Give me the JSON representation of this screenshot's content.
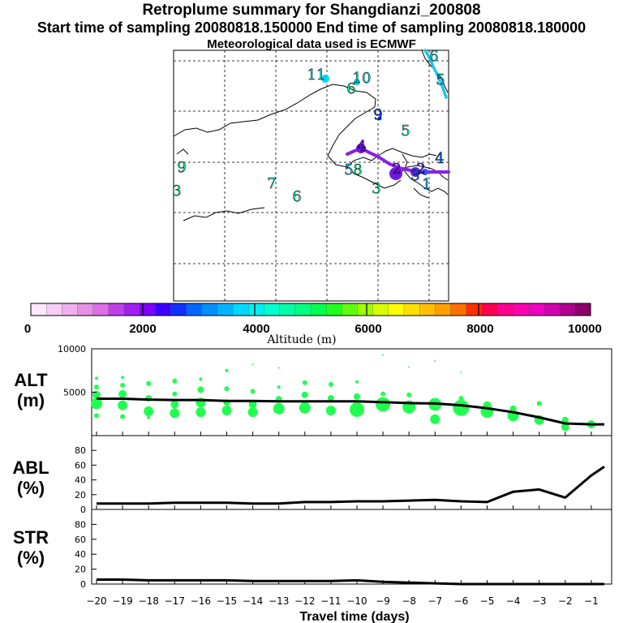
{
  "title": "Retroplume summary for Shangdianzi_200808",
  "subtitle": "Start time of sampling 20080818.150000     End time of sampling 20080818.180000",
  "met_line": "Meteorological data used is ECMWF",
  "colorbar": {
    "labels": [
      "0",
      "2000",
      "4000",
      "6000",
      "8000",
      "10000"
    ],
    "caption": "Altitude (m)",
    "colors": [
      "#fbe8fb",
      "#f5cdf5",
      "#eeb0ee",
      "#e690e6",
      "#dd6fe6",
      "#c040e8",
      "#a020f0",
      "#8000ff",
      "#3a00ff",
      "#1030ff",
      "#0068ff",
      "#0090ff",
      "#00b4ff",
      "#00d8ff",
      "#00f0f0",
      "#00ffd0",
      "#00ffa8",
      "#00ff80",
      "#00ff50",
      "#20ff20",
      "#60ff10",
      "#a0ff00",
      "#d8ff00",
      "#ffff00",
      "#ffe000",
      "#ffc000",
      "#ffa000",
      "#ff7000",
      "#ff3000",
      "#ff0050",
      "#ff0090",
      "#ff00b0",
      "#f000c0",
      "#d000b0",
      "#b00090",
      "#8c006c"
    ]
  },
  "map": {
    "numbers": [
      {
        "t": "11",
        "x": 390,
        "y": 98,
        "c": "#00e0e8"
      },
      {
        "t": "10",
        "x": 446,
        "y": 102,
        "c": "#00e0e8"
      },
      {
        "t": "6",
        "x": 433,
        "y": 115,
        "c": "#00ffa0"
      },
      {
        "t": "9",
        "x": 466,
        "y": 147,
        "c": "#1040ff"
      },
      {
        "t": "5",
        "x": 500,
        "y": 167,
        "c": "#00ffd0"
      },
      {
        "t": "4",
        "x": 446,
        "y": 186,
        "c": "#8000ff"
      },
      {
        "t": "4",
        "x": 542,
        "y": 201,
        "c": "#0068ff"
      },
      {
        "t": "9",
        "x": 224,
        "y": 212,
        "c": "#00ff80"
      },
      {
        "t": "5",
        "x": 430,
        "y": 215,
        "c": "#00d8ff"
      },
      {
        "t": "8",
        "x": 441,
        "y": 215,
        "c": "#00ff80"
      },
      {
        "t": "2",
        "x": 489,
        "y": 214,
        "c": "#8000ff"
      },
      {
        "t": "2",
        "x": 519,
        "y": 214,
        "c": "#3a00ff"
      },
      {
        "t": "3",
        "x": 512,
        "y": 222,
        "c": "#0090ff"
      },
      {
        "t": "1",
        "x": 526,
        "y": 233,
        "c": "#00b4ff"
      },
      {
        "t": "7",
        "x": 335,
        "y": 232,
        "c": "#00ffd0"
      },
      {
        "t": "3",
        "x": 464,
        "y": 238,
        "c": "#00ffa8"
      },
      {
        "t": "3",
        "x": 218,
        "y": 241,
        "c": "#00ff80"
      },
      {
        "t": "6",
        "x": 366,
        "y": 248,
        "c": "#00ffa0"
      },
      {
        "t": "6",
        "x": 535,
        "y": 75,
        "c": "#00e8e8"
      },
      {
        "t": "5",
        "x": 543,
        "y": 104,
        "c": "#00e8e8"
      }
    ]
  },
  "panels": {
    "alt": {
      "label1": "ALT",
      "label2": "(m)"
    },
    "abl": {
      "label1": "ABL",
      "label2": "(%)"
    },
    "str": {
      "label1": "STR",
      "label2": "(%)"
    }
  },
  "xaxis": {
    "label": "Travel time (days)"
  },
  "chart_data": [
    {
      "type": "line",
      "title": "ALT (m)",
      "ylim": [
        0,
        10000
      ],
      "yticks": [
        5000,
        10000
      ],
      "x": [
        -20,
        -19,
        -18,
        -17,
        -16,
        -15,
        -14,
        -13,
        -12,
        -11,
        -10,
        -9,
        -8,
        -7,
        -6,
        -5,
        -4,
        -3,
        -2,
        -1,
        -0.5
      ],
      "values": [
        4250,
        4250,
        4150,
        4100,
        4100,
        4000,
        4000,
        3950,
        3950,
        3950,
        3950,
        3850,
        3750,
        3700,
        3500,
        3150,
        2700,
        2100,
        1400,
        1300,
        1300
      ],
      "scatter": [
        {
          "x": -20,
          "y": 3700,
          "s": 7
        },
        {
          "x": -20,
          "y": 4700,
          "s": 5
        },
        {
          "x": -20,
          "y": 5600,
          "s": 3
        },
        {
          "x": -20,
          "y": 6600,
          "s": 2
        },
        {
          "x": -20,
          "y": 2300,
          "s": 3
        },
        {
          "x": -19,
          "y": 3500,
          "s": 6
        },
        {
          "x": -19,
          "y": 4800,
          "s": 5
        },
        {
          "x": -19,
          "y": 5800,
          "s": 3
        },
        {
          "x": -19,
          "y": 6700,
          "s": 2
        },
        {
          "x": -19,
          "y": 2200,
          "s": 3
        },
        {
          "x": -18,
          "y": 2800,
          "s": 6
        },
        {
          "x": -18,
          "y": 4300,
          "s": 4
        },
        {
          "x": -18,
          "y": 6000,
          "s": 3
        },
        {
          "x": -18,
          "y": 2100,
          "s": 2
        },
        {
          "x": -17,
          "y": 2600,
          "s": 6
        },
        {
          "x": -17,
          "y": 3600,
          "s": 5
        },
        {
          "x": -17,
          "y": 4800,
          "s": 3
        },
        {
          "x": -17,
          "y": 6300,
          "s": 3
        },
        {
          "x": -16,
          "y": 2700,
          "s": 6
        },
        {
          "x": -16,
          "y": 3800,
          "s": 6
        },
        {
          "x": -16,
          "y": 5300,
          "s": 4
        },
        {
          "x": -16,
          "y": 6500,
          "s": 2
        },
        {
          "x": -15,
          "y": 2900,
          "s": 6
        },
        {
          "x": -15,
          "y": 3800,
          "s": 4
        },
        {
          "x": -15,
          "y": 5400,
          "s": 3
        },
        {
          "x": -15,
          "y": 7500,
          "s": 2
        },
        {
          "x": -14,
          "y": 2700,
          "s": 6
        },
        {
          "x": -14,
          "y": 3600,
          "s": 5
        },
        {
          "x": -14,
          "y": 5100,
          "s": 3
        },
        {
          "x": -14,
          "y": 8200,
          "s": 1
        },
        {
          "x": -13,
          "y": 3100,
          "s": 7
        },
        {
          "x": -13,
          "y": 4200,
          "s": 4
        },
        {
          "x": -13,
          "y": 5600,
          "s": 2
        },
        {
          "x": -13,
          "y": 7800,
          "s": 1
        },
        {
          "x": -12,
          "y": 3200,
          "s": 7
        },
        {
          "x": -12,
          "y": 4700,
          "s": 4
        },
        {
          "x": -12,
          "y": 6100,
          "s": 3
        },
        {
          "x": -11,
          "y": 2900,
          "s": 6
        },
        {
          "x": -11,
          "y": 4300,
          "s": 4
        },
        {
          "x": -11,
          "y": 5900,
          "s": 3
        },
        {
          "x": -10,
          "y": 3000,
          "s": 9
        },
        {
          "x": -10,
          "y": 4500,
          "s": 4
        },
        {
          "x": -10,
          "y": 6200,
          "s": 2
        },
        {
          "x": -9,
          "y": 3600,
          "s": 9
        },
        {
          "x": -9,
          "y": 4800,
          "s": 3
        },
        {
          "x": -9,
          "y": 9300,
          "s": 1
        },
        {
          "x": -8,
          "y": 3300,
          "s": 8
        },
        {
          "x": -8,
          "y": 4700,
          "s": 3
        },
        {
          "x": -8,
          "y": 7900,
          "s": 1
        },
        {
          "x": -7,
          "y": 1900,
          "s": 6
        },
        {
          "x": -7,
          "y": 3600,
          "s": 8
        },
        {
          "x": -7,
          "y": 8600,
          "s": 1
        },
        {
          "x": -6,
          "y": 3200,
          "s": 10
        },
        {
          "x": -6,
          "y": 4300,
          "s": 3
        },
        {
          "x": -6,
          "y": 7300,
          "s": 1
        },
        {
          "x": -5,
          "y": 2800,
          "s": 8
        },
        {
          "x": -5,
          "y": 3500,
          "s": 5
        },
        {
          "x": -4,
          "y": 2300,
          "s": 7
        },
        {
          "x": -4,
          "y": 3100,
          "s": 4
        },
        {
          "x": -3,
          "y": 1800,
          "s": 6
        },
        {
          "x": -3,
          "y": 3700,
          "s": 3
        },
        {
          "x": -2,
          "y": 1000,
          "s": 5
        },
        {
          "x": -2,
          "y": 1800,
          "s": 4
        },
        {
          "x": -1,
          "y": 1300,
          "s": 5
        }
      ]
    },
    {
      "type": "line",
      "title": "ABL (%)",
      "ylim": [
        0,
        100
      ],
      "yticks": [
        0,
        20,
        40,
        60,
        80
      ],
      "x": [
        -20,
        -19,
        -18,
        -17,
        -16,
        -15,
        -14,
        -13,
        -12,
        -11,
        -10,
        -9,
        -8,
        -7,
        -6,
        -5,
        -4,
        -3,
        -2,
        -1,
        -0.5
      ],
      "values": [
        8,
        8,
        8,
        9,
        9,
        9,
        8,
        8,
        10,
        10,
        11,
        11,
        12,
        13,
        11,
        10,
        24,
        27,
        16,
        46,
        58
      ]
    },
    {
      "type": "line",
      "title": "STR (%)",
      "ylim": [
        0,
        100
      ],
      "yticks": [
        0,
        20,
        40,
        60,
        80
      ],
      "xlabel": "Travel time (days)",
      "xticks": [
        "−20",
        "−19",
        "−18",
        "−17",
        "−16",
        "−15",
        "−14",
        "−13",
        "−12",
        "−11",
        "−10",
        "−9",
        "−8",
        "−7",
        "−6",
        "−5",
        "−4",
        "−3",
        "−2",
        "−1"
      ],
      "x": [
        -20,
        -19,
        -18,
        -17,
        -16,
        -15,
        -14,
        -13,
        -12,
        -11,
        -10,
        -9,
        -8,
        -7,
        -6,
        -5,
        -4,
        -3,
        -2,
        -1,
        -0.5
      ],
      "values": [
        6,
        6,
        5,
        5,
        5,
        5,
        4,
        4,
        4,
        4,
        5,
        3,
        2,
        1,
        0,
        0,
        0,
        0,
        0,
        0,
        0
      ]
    }
  ]
}
